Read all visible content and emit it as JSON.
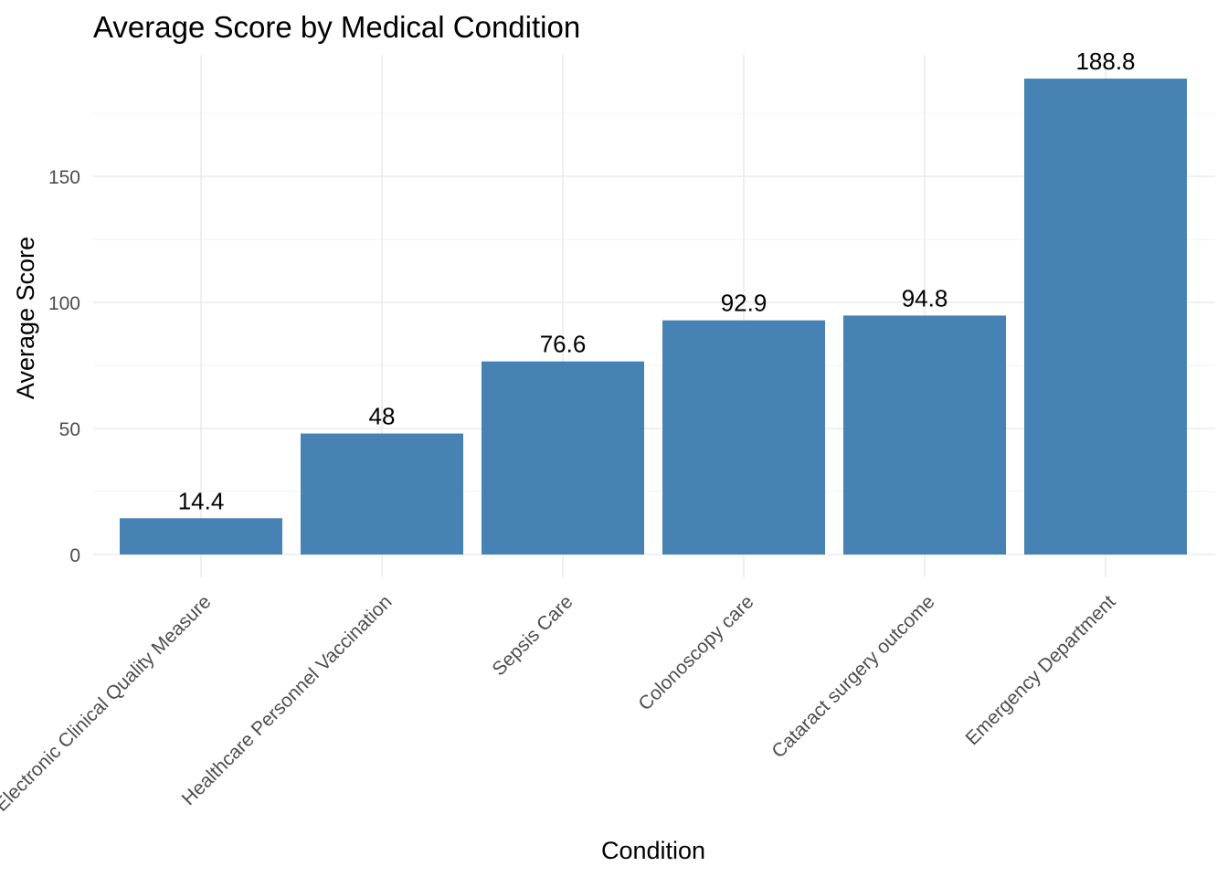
{
  "chart_data": {
    "type": "bar",
    "title": "Average Score by Medical Condition",
    "xlabel": "Condition",
    "ylabel": "Average Score",
    "categories": [
      "Electronic Clinical Quality Measure",
      "Healthcare Personnel Vaccination",
      "Sepsis Care",
      "Colonoscopy care",
      "Cataract surgery outcome",
      "Emergency Department"
    ],
    "values": [
      14.4,
      48,
      76.6,
      92.9,
      94.8,
      188.8
    ],
    "data_labels": [
      "14.4",
      "48",
      "76.6",
      "92.9",
      "94.8",
      "188.8"
    ],
    "yticks": [
      0,
      50,
      100,
      150
    ],
    "ylim": [
      0,
      198.24
    ],
    "grid": true,
    "legend": "none",
    "bar_color": "#4682b4"
  }
}
